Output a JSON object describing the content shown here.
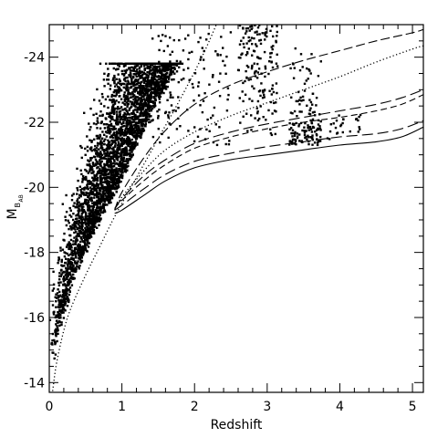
{
  "chart_data": {
    "type": "scatter",
    "xlabel": "Redshift",
    "ylabel": "M",
    "ylabel_subscript": "B",
    "ylabel_subsubscript": "AB",
    "xlim": [
      0,
      5.15
    ],
    "ylim": [
      -13.7,
      -25.0
    ],
    "y_inverted": true,
    "xticks": [
      0,
      1,
      2,
      3,
      4,
      5
    ],
    "xtick_labels": [
      "0",
      "1",
      "2",
      "3",
      "4",
      "5"
    ],
    "yticks": [
      -14,
      -16,
      -18,
      -20,
      -22,
      -24
    ],
    "ytick_labels": [
      "-14",
      "-16",
      "-18",
      "-20",
      "-22",
      "-24"
    ],
    "grid": false,
    "legend": "none",
    "scatter_colors": [
      "#000000"
    ],
    "series": [
      {
        "style": "solid",
        "x": [
          0.9,
          1.0,
          1.3,
          1.6,
          2.0,
          2.5,
          3.0,
          3.5,
          4.0,
          4.5,
          4.85,
          5.15
        ],
        "y": [
          -19.2,
          -19.3,
          -19.75,
          -20.2,
          -20.6,
          -20.85,
          -21.0,
          -21.15,
          -21.3,
          -21.4,
          -21.55,
          -21.85
        ]
      },
      {
        "style": "long-dash",
        "x": [
          0.9,
          1.0,
          1.3,
          1.6,
          2.0,
          2.5,
          3.0,
          3.5,
          4.0,
          4.5,
          4.85,
          5.15
        ],
        "y": [
          -19.3,
          -19.45,
          -19.95,
          -20.4,
          -20.8,
          -21.05,
          -21.25,
          -21.4,
          -21.55,
          -21.65,
          -21.8,
          -22.05
        ]
      },
      {
        "style": "dash",
        "x": [
          0.9,
          1.0,
          1.3,
          1.6,
          2.0,
          2.5,
          3.0,
          3.5,
          4.0,
          4.5,
          4.85,
          5.15
        ],
        "y": [
          -19.35,
          -19.6,
          -20.2,
          -20.7,
          -21.2,
          -21.55,
          -21.8,
          -22.0,
          -22.15,
          -22.35,
          -22.55,
          -22.85
        ]
      },
      {
        "style": "long-dash",
        "x": [
          0.9,
          1.0,
          1.3,
          1.6,
          2.0,
          2.5,
          3.0,
          3.5,
          4.0,
          4.5,
          4.85,
          5.15
        ],
        "y": [
          -19.35,
          -19.65,
          -20.35,
          -20.85,
          -21.35,
          -21.7,
          -21.95,
          -22.15,
          -22.35,
          -22.55,
          -22.75,
          -23.0
        ]
      },
      {
        "style": "dotted",
        "x": [
          0.9,
          1.0,
          1.3,
          1.6,
          2.0,
          2.5,
          3.0,
          3.5,
          4.0,
          4.5,
          5.0,
          5.15
        ],
        "y": [
          -19.3,
          -19.7,
          -20.5,
          -21.15,
          -21.7,
          -22.2,
          -22.6,
          -23.0,
          -23.4,
          -23.85,
          -24.25,
          -24.35
        ]
      },
      {
        "style": "short-dash",
        "x": [
          0.9,
          1.0,
          1.3,
          1.6,
          2.0,
          2.5,
          3.0,
          3.5,
          4.0,
          4.5,
          5.0,
          5.15
        ],
        "y": [
          -19.3,
          -19.85,
          -20.9,
          -21.75,
          -22.55,
          -23.15,
          -23.55,
          -23.9,
          -24.2,
          -24.5,
          -24.75,
          -24.85
        ]
      },
      {
        "style": "dotted",
        "x": [
          0.0,
          0.05,
          0.1,
          0.2,
          0.3,
          0.5,
          0.7,
          0.9,
          1.2,
          1.5,
          1.8,
          2.1,
          2.3
        ],
        "y": [
          -13.0,
          -13.8,
          -14.6,
          -15.6,
          -16.3,
          -17.3,
          -18.2,
          -19.1,
          -20.3,
          -21.5,
          -22.7,
          -24.0,
          -25.0
        ]
      }
    ]
  }
}
